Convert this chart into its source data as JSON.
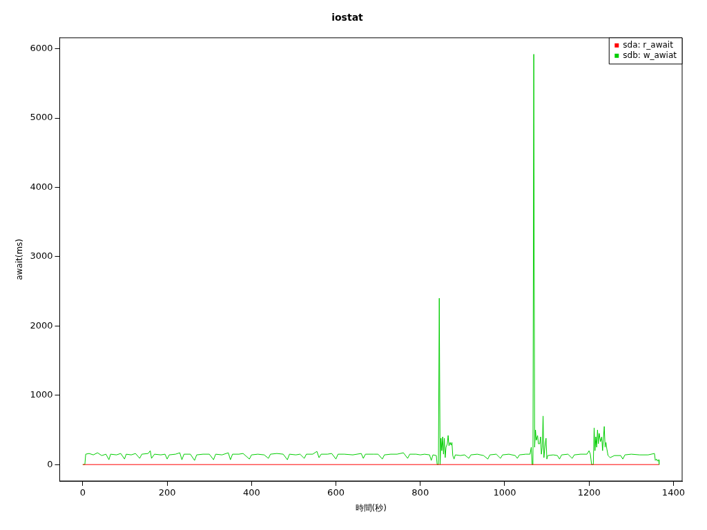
{
  "chart_data": {
    "type": "line",
    "title": "iostat",
    "xlabel": "時間(秒)",
    "ylabel": "await(ms)",
    "xlim": [
      -54.6,
      1420.6
    ],
    "xticks": [
      0,
      200,
      400,
      600,
      800,
      1000,
      1200,
      1400
    ],
    "ylim": [
      -237,
      6157
    ],
    "yticks": [
      0,
      1000,
      2000,
      3000,
      4000,
      5000,
      6000
    ],
    "grid": false,
    "legend": "top right",
    "marker": "none",
    "line_style": "solid",
    "series": [
      {
        "name": "sda: r_await",
        "color": "#ff0000",
        "x": [
          0,
          1366
        ],
        "values": [
          0,
          0
        ]
      },
      {
        "name": "sdb: w_awiat",
        "color": "#00cd00",
        "x": [
          0,
          5,
          7,
          15,
          25,
          35,
          45,
          55,
          62,
          66,
          80,
          90,
          99,
          103,
          115,
          125,
          135,
          140,
          155,
          160,
          163,
          170,
          185,
          195,
          200,
          205,
          220,
          230,
          235,
          240,
          255,
          265,
          270,
          285,
          300,
          310,
          315,
          330,
          345,
          350,
          355,
          370,
          380,
          395,
          400,
          415,
          430,
          440,
          445,
          460,
          475,
          485,
          490,
          505,
          515,
          525,
          530,
          545,
          555,
          560,
          565,
          580,
          590,
          600,
          605,
          620,
          640,
          660,
          665,
          670,
          690,
          700,
          710,
          715,
          730,
          745,
          760,
          770,
          775,
          790,
          800,
          810,
          822,
          826,
          830,
          838,
          840,
          843,
          845,
          847,
          849,
          851,
          853,
          855,
          857,
          859,
          861,
          864,
          866,
          868,
          871,
          873,
          875,
          877,
          880,
          883,
          895,
          905,
          915,
          920,
          935,
          950,
          960,
          965,
          980,
          990,
          995,
          1010,
          1025,
          1030,
          1035,
          1050,
          1060,
          1063,
          1065,
          1067,
          1069,
          1071,
          1073,
          1075,
          1078,
          1080,
          1083,
          1085,
          1087,
          1089,
          1091,
          1093,
          1096,
          1098,
          1100,
          1102,
          1115,
          1125,
          1130,
          1135,
          1150,
          1160,
          1165,
          1180,
          1195,
          1200,
          1203,
          1206,
          1210,
          1212,
          1214,
          1216,
          1218,
          1220,
          1222,
          1224,
          1227,
          1230,
          1232,
          1236,
          1238,
          1240,
          1242,
          1245,
          1250,
          1260,
          1275,
          1280,
          1285,
          1300,
          1320,
          1340,
          1355,
          1357,
          1360,
          1362,
          1365,
          1366
        ],
        "values": [
          0,
          0,
          150,
          160,
          140,
          170,
          130,
          150,
          70,
          150,
          140,
          160,
          80,
          150,
          140,
          160,
          90,
          150,
          160,
          200,
          90,
          150,
          140,
          150,
          80,
          140,
          150,
          170,
          70,
          150,
          150,
          60,
          140,
          150,
          150,
          70,
          150,
          140,
          170,
          70,
          150,
          150,
          160,
          80,
          140,
          150,
          140,
          90,
          150,
          160,
          150,
          70,
          150,
          140,
          150,
          90,
          150,
          150,
          190,
          100,
          150,
          150,
          160,
          80,
          150,
          150,
          140,
          160,
          90,
          150,
          150,
          150,
          80,
          140,
          150,
          150,
          170,
          90,
          150,
          150,
          140,
          150,
          140,
          60,
          140,
          130,
          0,
          0,
          2400,
          0,
          380,
          200,
          400,
          150,
          380,
          100,
          250,
          300,
          420,
          270,
          320,
          280,
          320,
          130,
          80,
          140,
          130,
          140,
          90,
          140,
          150,
          130,
          80,
          140,
          150,
          90,
          140,
          150,
          130,
          90,
          140,
          150,
          150,
          250,
          0,
          0,
          5920,
          250,
          500,
          350,
          420,
          300,
          300,
          400,
          150,
          250,
          700,
          100,
          300,
          380,
          80,
          130,
          140,
          130,
          80,
          140,
          150,
          90,
          140,
          150,
          150,
          200,
          150,
          0,
          0,
          530,
          200,
          400,
          250,
          500,
          300,
          450,
          330,
          400,
          200,
          550,
          250,
          320,
          230,
          130,
          100,
          130,
          130,
          80,
          140,
          150,
          140,
          140,
          160,
          60,
          80,
          50,
          70,
          0
        ]
      }
    ]
  }
}
